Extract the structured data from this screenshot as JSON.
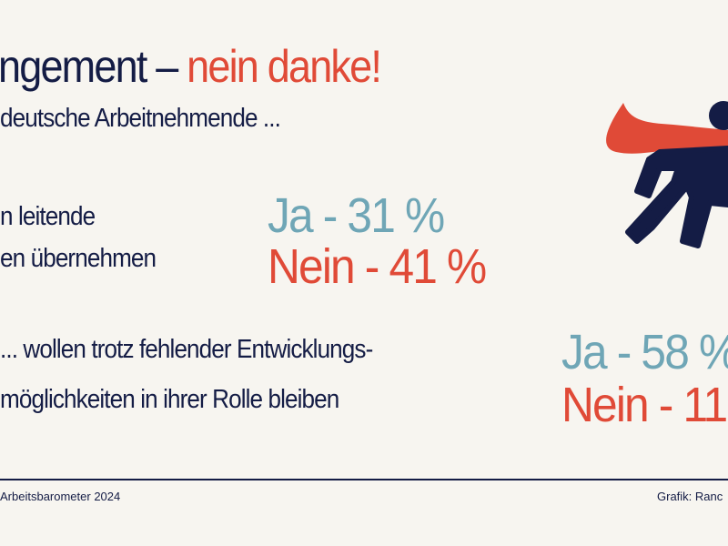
{
  "title": {
    "part1": "ngement – ",
    "part2": "nein danke!"
  },
  "subtitle": "deutsche Arbeitnehmende ...",
  "questions": [
    {
      "line1": "n leitende",
      "line2": "en übernehmen",
      "yes": "Ja - 31 %",
      "no": "Nein - 41 %"
    },
    {
      "line1": "... wollen trotz fehlender Entwicklungs-",
      "line2": "möglichkeiten in ihrer Rolle bleiben",
      "yes": "Ja - 58 %",
      "no": "Nein - 11"
    }
  ],
  "footer": {
    "source": "Arbeitsbarometer 2024",
    "credit": "Grafik: Ranc"
  },
  "colors": {
    "navy": "#141c45",
    "red": "#e04a37",
    "teal": "#6fa6b6",
    "background": "#f7f5f0"
  },
  "illustration": "superhero-icon"
}
